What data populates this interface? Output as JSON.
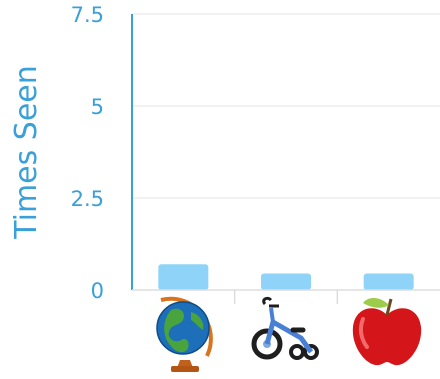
{
  "chart_data": {
    "type": "bar",
    "ylabel": "Times Seen",
    "xlabel": "",
    "ylim": [
      0,
      7.5
    ],
    "yticks": [
      0,
      2.5,
      5,
      7.5
    ],
    "ytick_labels": [
      "0",
      "2.5",
      "5",
      "7.5"
    ],
    "grid": true,
    "categories": [
      "globe-icon",
      "tricycle-icon",
      "apple-icon"
    ],
    "values": [
      0.7,
      0.45,
      0.45
    ],
    "bar_color": "#8fd3f8",
    "axis_color": "#3aa0d8"
  }
}
